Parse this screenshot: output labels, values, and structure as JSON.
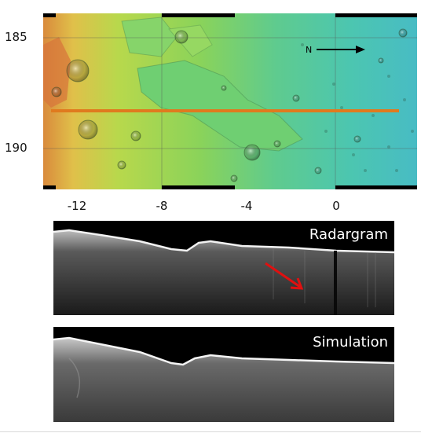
{
  "map": {
    "y_ticks": [
      "185",
      "190"
    ],
    "x_ticks": [
      "-12",
      "-8",
      "-4",
      "0"
    ],
    "north_label": "N",
    "colors": {
      "track": "#e07a1e",
      "arrow_black": "#000000",
      "arrow_red": "#e01010",
      "relief_high": "#d87a3a",
      "relief_mid": "#8fd05a",
      "relief_low": "#4cc7b4"
    },
    "icons": [
      "north-arrow-icon",
      "red-arrow-icon"
    ]
  },
  "panels": {
    "radargram_label": "Radargram",
    "simulation_label": "Simulation"
  }
}
